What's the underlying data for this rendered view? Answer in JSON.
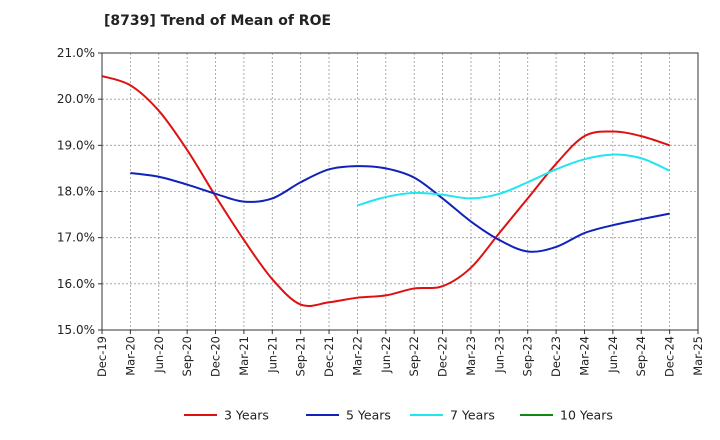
{
  "chart_data": {
    "type": "line",
    "title": "[8739]  Trend of Mean of ROE",
    "xlabel": "",
    "ylabel": "",
    "x_ticks": [
      "Dec-19",
      "Mar-20",
      "Jun-20",
      "Sep-20",
      "Dec-20",
      "Mar-21",
      "Jun-21",
      "Sep-21",
      "Dec-21",
      "Mar-22",
      "Jun-22",
      "Sep-22",
      "Dec-22",
      "Mar-23",
      "Jun-23",
      "Sep-23",
      "Dec-23",
      "Mar-24",
      "Jun-24",
      "Sep-24",
      "Dec-24",
      "Mar-25"
    ],
    "y_ticks": [
      "15.0%",
      "16.0%",
      "17.0%",
      "18.0%",
      "19.0%",
      "20.0%",
      "21.0%"
    ],
    "ylim": [
      15.0,
      21.0
    ],
    "grid": true,
    "legend_position": "bottom",
    "series": [
      {
        "name": "3 Years",
        "color": "#dd1111",
        "values": [
          20.5,
          20.3,
          19.75,
          18.9,
          17.9,
          16.95,
          16.1,
          15.55,
          15.6,
          15.7,
          15.75,
          15.9,
          15.95,
          16.35,
          17.1,
          17.85,
          18.6,
          19.2,
          19.3,
          19.2,
          19.0,
          null
        ]
      },
      {
        "name": "5 Years",
        "color": "#1122bb",
        "values": [
          null,
          18.4,
          18.32,
          18.15,
          17.95,
          17.78,
          17.85,
          18.2,
          18.48,
          18.55,
          18.5,
          18.3,
          17.85,
          17.35,
          16.95,
          16.7,
          16.8,
          17.1,
          17.27,
          17.4,
          17.52,
          null
        ]
      },
      {
        "name": "7 Years",
        "color": "#22e5ee",
        "values": [
          null,
          null,
          null,
          null,
          null,
          null,
          null,
          null,
          null,
          17.7,
          17.88,
          17.97,
          17.93,
          17.85,
          17.95,
          18.2,
          18.48,
          18.7,
          18.8,
          18.72,
          18.45,
          null
        ]
      },
      {
        "name": "10 Years",
        "color": "#118811",
        "values": [
          null,
          null,
          null,
          null,
          null,
          null,
          null,
          null,
          null,
          null,
          null,
          null,
          null,
          null,
          null,
          null,
          null,
          null,
          null,
          null,
          null,
          null
        ]
      }
    ]
  }
}
